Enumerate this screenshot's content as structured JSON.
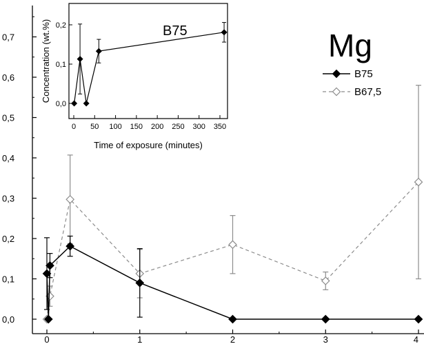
{
  "chart_data": [
    {
      "type": "line",
      "title": "Mg",
      "xlabel": "",
      "ylabel": "",
      "xlim": [
        -0.1,
        4.05
      ],
      "ylim": [
        -0.02,
        0.76
      ],
      "x_ticks": [
        0,
        1,
        2,
        3,
        4
      ],
      "x_tick_labels": [
        "0",
        "1",
        "2",
        "3",
        "4"
      ],
      "y_ticks": [
        0.0,
        0.1,
        0.2,
        0.3,
        0.4,
        0.5,
        0.6,
        0.7
      ],
      "y_tick_labels": [
        "0,0",
        "0,1",
        "0,2",
        "0,3",
        "0,4",
        "0,5",
        "0,6",
        "0,7"
      ],
      "legend_position": "top-right",
      "series": [
        {
          "name": "B75",
          "style": "solid",
          "marker": "filled-diamond",
          "color": "#000000",
          "x": [
            0,
            0.017,
            0.033,
            0.25,
            1,
            2,
            3,
            4
          ],
          "y": [
            0.113,
            0.0,
            0.133,
            0.181,
            0.09,
            0.0,
            0.0,
            0.0
          ],
          "err": [
            0.089,
            0.0,
            0.03,
            0.025,
            0.085,
            0.0,
            0.0,
            0.0
          ]
        },
        {
          "name": "B67,5",
          "style": "dashed",
          "marker": "open-diamond",
          "color": "#808080",
          "x": [
            0,
            0.033,
            0.25,
            1,
            2,
            3,
            4
          ],
          "y": [
            0.0,
            0.057,
            0.297,
            0.113,
            0.185,
            0.095,
            0.34
          ],
          "err": [
            0.0,
            0.025,
            0.11,
            0.06,
            0.072,
            0.022,
            0.24
          ]
        }
      ]
    },
    {
      "type": "line",
      "title": "B75",
      "xlabel": "Time of exposure (minutes)",
      "ylabel": "Concentration (wt.%)",
      "xlim": [
        -10,
        370
      ],
      "ylim": [
        -0.02,
        0.25
      ],
      "x_ticks": [
        0,
        50,
        100,
        150,
        200,
        250,
        300,
        350
      ],
      "x_tick_labels": [
        "0",
        "50",
        "100",
        "150",
        "200",
        "250",
        "300",
        "350"
      ],
      "y_ticks": [
        0.0,
        0.1,
        0.2
      ],
      "y_tick_labels": [
        "0,0",
        "0,1",
        "0,2"
      ],
      "series": [
        {
          "name": "B75",
          "style": "solid",
          "marker": "filled-diamond",
          "color": "#000000",
          "x": [
            1,
            15,
            30,
            60,
            360
          ],
          "y": [
            0.0,
            0.113,
            0.0,
            0.133,
            0.181
          ],
          "err": [
            0.0,
            0.089,
            0.0,
            0.03,
            0.025
          ]
        }
      ]
    }
  ]
}
